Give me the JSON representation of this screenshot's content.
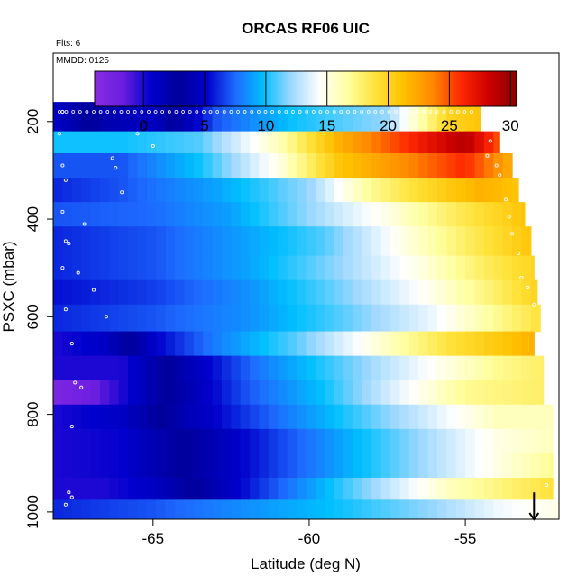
{
  "chart_data": {
    "type": "heatmap",
    "title": "ORCAS RF06 UIC",
    "subtitle_top": "Flts: 6",
    "subtitle_inner": "MMDD: 0125",
    "xlabel": "Latitude (deg N)",
    "ylabel": "PSXC (mbar)",
    "xlim": [
      -68.2,
      -52.0
    ],
    "ylim": [
      1015,
      60
    ],
    "y_reversed": true,
    "x_ticks": [
      -65,
      -60,
      -55
    ],
    "x_tick_labels": [
      "-65",
      "-60",
      "-55"
    ],
    "y_ticks": [
      200,
      400,
      600,
      800,
      1000
    ],
    "y_tick_labels": [
      "200",
      "400",
      "600",
      "800",
      "1000"
    ],
    "colorbar": {
      "range": [
        -4,
        30.5
      ],
      "ticks": [
        0,
        5,
        10,
        15,
        20,
        25,
        30
      ],
      "tick_labels": [
        "0",
        "5",
        "10",
        "15",
        "20",
        "25",
        "30"
      ],
      "colors": [
        "#8a2be2",
        "#6a1ee0",
        "#0000cd",
        "#00009a",
        "#0000cc",
        "#1e6bff",
        "#00bfff",
        "#9fd8ff",
        "#ffffff",
        "#ffffa0",
        "#ffe23a",
        "#ffc000",
        "#ff8a00",
        "#ff2a00",
        "#cc0000",
        "#8b0000"
      ]
    },
    "x_bin_start": -68.2,
    "x_bin_step": 0.3,
    "rows": [
      {
        "p_top": 160,
        "p_bot": 220,
        "x_end": -54.5,
        "nodes": [
          [
            -68.2,
            5
          ],
          [
            -66.5,
            2
          ],
          [
            -65.0,
            1
          ],
          [
            -63.0,
            7
          ],
          [
            -60.5,
            10
          ],
          [
            -57.5,
            12
          ],
          [
            -55.5,
            20
          ],
          [
            -54.5,
            21
          ]
        ]
      },
      {
        "p_top": 220,
        "p_bot": 265,
        "x_end": -53.9,
        "nodes": [
          [
            -68.2,
            10
          ],
          [
            -66.0,
            10
          ],
          [
            -63.5,
            11
          ],
          [
            -61.0,
            16
          ],
          [
            -59.0,
            22
          ],
          [
            -56.5,
            26.5
          ],
          [
            -55.0,
            29
          ],
          [
            -53.9,
            25
          ]
        ]
      },
      {
        "p_top": 265,
        "p_bot": 315,
        "x_end": -53.5,
        "nodes": [
          [
            -68.2,
            7
          ],
          [
            -66.0,
            7
          ],
          [
            -63.5,
            10
          ],
          [
            -61.0,
            15
          ],
          [
            -59.0,
            21
          ],
          [
            -56.5,
            24
          ],
          [
            -55.0,
            26
          ],
          [
            -53.5,
            22
          ]
        ]
      },
      {
        "p_top": 315,
        "p_bot": 365,
        "x_end": -53.3,
        "nodes": [
          [
            -68.2,
            6
          ],
          [
            -66.0,
            7
          ],
          [
            -63.0,
            9
          ],
          [
            -60.0,
            12
          ],
          [
            -58.0,
            17
          ],
          [
            -56.0,
            20
          ],
          [
            -54.5,
            22
          ],
          [
            -53.3,
            21
          ]
        ]
      },
      {
        "p_top": 365,
        "p_bot": 415,
        "x_end": -53.1,
        "nodes": [
          [
            -68.2,
            7
          ],
          [
            -65.0,
            7.5
          ],
          [
            -62.5,
            9
          ],
          [
            -60.0,
            12
          ],
          [
            -57.5,
            15
          ],
          [
            -55.5,
            18
          ],
          [
            -53.1,
            21
          ]
        ]
      },
      {
        "p_top": 415,
        "p_bot": 475,
        "x_end": -52.9,
        "nodes": [
          [
            -68.2,
            6
          ],
          [
            -65.0,
            7
          ],
          [
            -62.0,
            9
          ],
          [
            -59.5,
            11
          ],
          [
            -57.0,
            15
          ],
          [
            -55.0,
            18
          ],
          [
            -52.9,
            21
          ]
        ]
      },
      {
        "p_top": 475,
        "p_bot": 525,
        "x_end": -52.8,
        "nodes": [
          [
            -68.2,
            6
          ],
          [
            -65.0,
            7
          ],
          [
            -62.0,
            9
          ],
          [
            -59.0,
            12
          ],
          [
            -56.5,
            15
          ],
          [
            -54.5,
            18
          ],
          [
            -52.8,
            20
          ]
        ]
      },
      {
        "p_top": 525,
        "p_bot": 575,
        "x_end": -52.7,
        "nodes": [
          [
            -68.2,
            5.5
          ],
          [
            -65.0,
            6.5
          ],
          [
            -62.0,
            8.5
          ],
          [
            -59.0,
            11.5
          ],
          [
            -56.0,
            15
          ],
          [
            -54.0,
            18
          ],
          [
            -52.7,
            20
          ]
        ]
      },
      {
        "p_top": 575,
        "p_bot": 630,
        "x_end": -52.6,
        "nodes": [
          [
            -68.2,
            6
          ],
          [
            -65.0,
            7
          ],
          [
            -62.0,
            8.5
          ],
          [
            -59.0,
            11
          ],
          [
            -56.0,
            14
          ],
          [
            -54.0,
            17
          ],
          [
            -52.6,
            19
          ]
        ]
      },
      {
        "p_top": 630,
        "p_bot": 680,
        "x_end": -52.8,
        "nodes": [
          [
            -68.2,
            0
          ],
          [
            -66.5,
            1
          ],
          [
            -65.0,
            5
          ],
          [
            -63.0,
            8
          ],
          [
            -60.5,
            11
          ],
          [
            -58.0,
            15
          ],
          [
            -55.5,
            19
          ],
          [
            -52.8,
            22
          ]
        ]
      },
      {
        "p_top": 680,
        "p_bot": 730,
        "x_end": -52.5,
        "nodes": [
          [
            -68.2,
            0
          ],
          [
            -66.0,
            0
          ],
          [
            -64.0,
            4
          ],
          [
            -61.5,
            8
          ],
          [
            -59.0,
            11
          ],
          [
            -56.5,
            14
          ],
          [
            -54.0,
            17
          ],
          [
            -52.5,
            18
          ]
        ]
      },
      {
        "p_top": 730,
        "p_bot": 780,
        "x_end": -52.5,
        "nodes": [
          [
            -68.2,
            -3
          ],
          [
            -67.0,
            -2
          ],
          [
            -66.0,
            0
          ],
          [
            -64.5,
            3
          ],
          [
            -62.0,
            7
          ],
          [
            -59.5,
            10
          ],
          [
            -57.0,
            14
          ],
          [
            -55.0,
            17
          ],
          [
            -52.5,
            18
          ]
        ]
      },
      {
        "p_top": 780,
        "p_bot": 830,
        "x_end": -52.2,
        "nodes": [
          [
            -68.2,
            0
          ],
          [
            -66.0,
            1
          ],
          [
            -64.0,
            4
          ],
          [
            -61.5,
            7
          ],
          [
            -59.0,
            10
          ],
          [
            -56.5,
            13
          ],
          [
            -54.0,
            16
          ],
          [
            -52.2,
            16
          ]
        ]
      },
      {
        "p_top": 830,
        "p_bot": 880,
        "x_end": -52.2,
        "nodes": [
          [
            -68.2,
            0
          ],
          [
            -66.0,
            0.5
          ],
          [
            -64.0,
            3
          ],
          [
            -61.5,
            6
          ],
          [
            -59.0,
            9
          ],
          [
            -56.5,
            12
          ],
          [
            -54.0,
            15
          ],
          [
            -52.2,
            16
          ]
        ]
      },
      {
        "p_top": 880,
        "p_bot": 930,
        "x_end": -52.2,
        "nodes": [
          [
            -68.2,
            0
          ],
          [
            -66.0,
            0.5
          ],
          [
            -64.0,
            3
          ],
          [
            -61.5,
            6
          ],
          [
            -59.0,
            9
          ],
          [
            -56.5,
            12
          ],
          [
            -54.0,
            15
          ],
          [
            -52.2,
            17
          ]
        ]
      },
      {
        "p_top": 930,
        "p_bot": 975,
        "x_end": -52.2,
        "nodes": [
          [
            -68.2,
            0
          ],
          [
            -66.5,
            0
          ],
          [
            -65.0,
            1
          ],
          [
            -63.0,
            4
          ],
          [
            -60.5,
            8
          ],
          [
            -58.0,
            12
          ],
          [
            -55.5,
            16
          ],
          [
            -52.2,
            19
          ]
        ]
      },
      {
        "p_top": 975,
        "p_bot": 1015,
        "x_end": -52.0,
        "nodes": [
          [
            -68.2,
            6
          ],
          [
            -65.0,
            7
          ],
          [
            -62.0,
            8.5
          ],
          [
            -59.0,
            10
          ],
          [
            -56.0,
            12
          ],
          [
            -54.0,
            14
          ],
          [
            -52.0,
            15
          ]
        ]
      }
    ],
    "flight_points": [
      [
        -68.0,
        225
      ],
      [
        -67.9,
        180
      ],
      [
        -67.9,
        290
      ],
      [
        -67.8,
        320
      ],
      [
        -67.9,
        385
      ],
      [
        -67.8,
        445
      ],
      [
        -67.7,
        450
      ],
      [
        -67.9,
        500
      ],
      [
        -67.8,
        585
      ],
      [
        -67.6,
        655
      ],
      [
        -67.5,
        735
      ],
      [
        -67.3,
        745
      ],
      [
        -67.6,
        825
      ],
      [
        -67.7,
        960
      ],
      [
        -67.6,
        970
      ],
      [
        -67.8,
        985
      ],
      [
        -67.4,
        510
      ],
      [
        -66.9,
        545
      ],
      [
        -67.2,
        410
      ],
      [
        -66.5,
        600
      ],
      [
        -66.3,
        275
      ],
      [
        -66.2,
        295
      ],
      [
        -66.0,
        345
      ],
      [
        -65.5,
        225
      ],
      [
        -65.0,
        250
      ],
      [
        -54.3,
        210
      ],
      [
        -54.2,
        240
      ],
      [
        -54.3,
        270
      ],
      [
        -54.0,
        290
      ],
      [
        -53.9,
        310
      ],
      [
        -53.7,
        360
      ],
      [
        -53.6,
        395
      ],
      [
        -53.5,
        430
      ],
      [
        -53.3,
        470
      ],
      [
        -53.2,
        520
      ],
      [
        -53.0,
        540
      ],
      [
        -52.8,
        575
      ],
      [
        -52.6,
        635
      ],
      [
        -52.5,
        655
      ],
      [
        -52.3,
        700
      ],
      [
        -52.4,
        945
      ]
    ],
    "top_track": {
      "p": 180,
      "x_start": -68.0,
      "x_end": -54.6,
      "spacing": 0.22
    },
    "arrow": {
      "x": -52.8,
      "p_start": 960,
      "p_end": 1015
    }
  }
}
